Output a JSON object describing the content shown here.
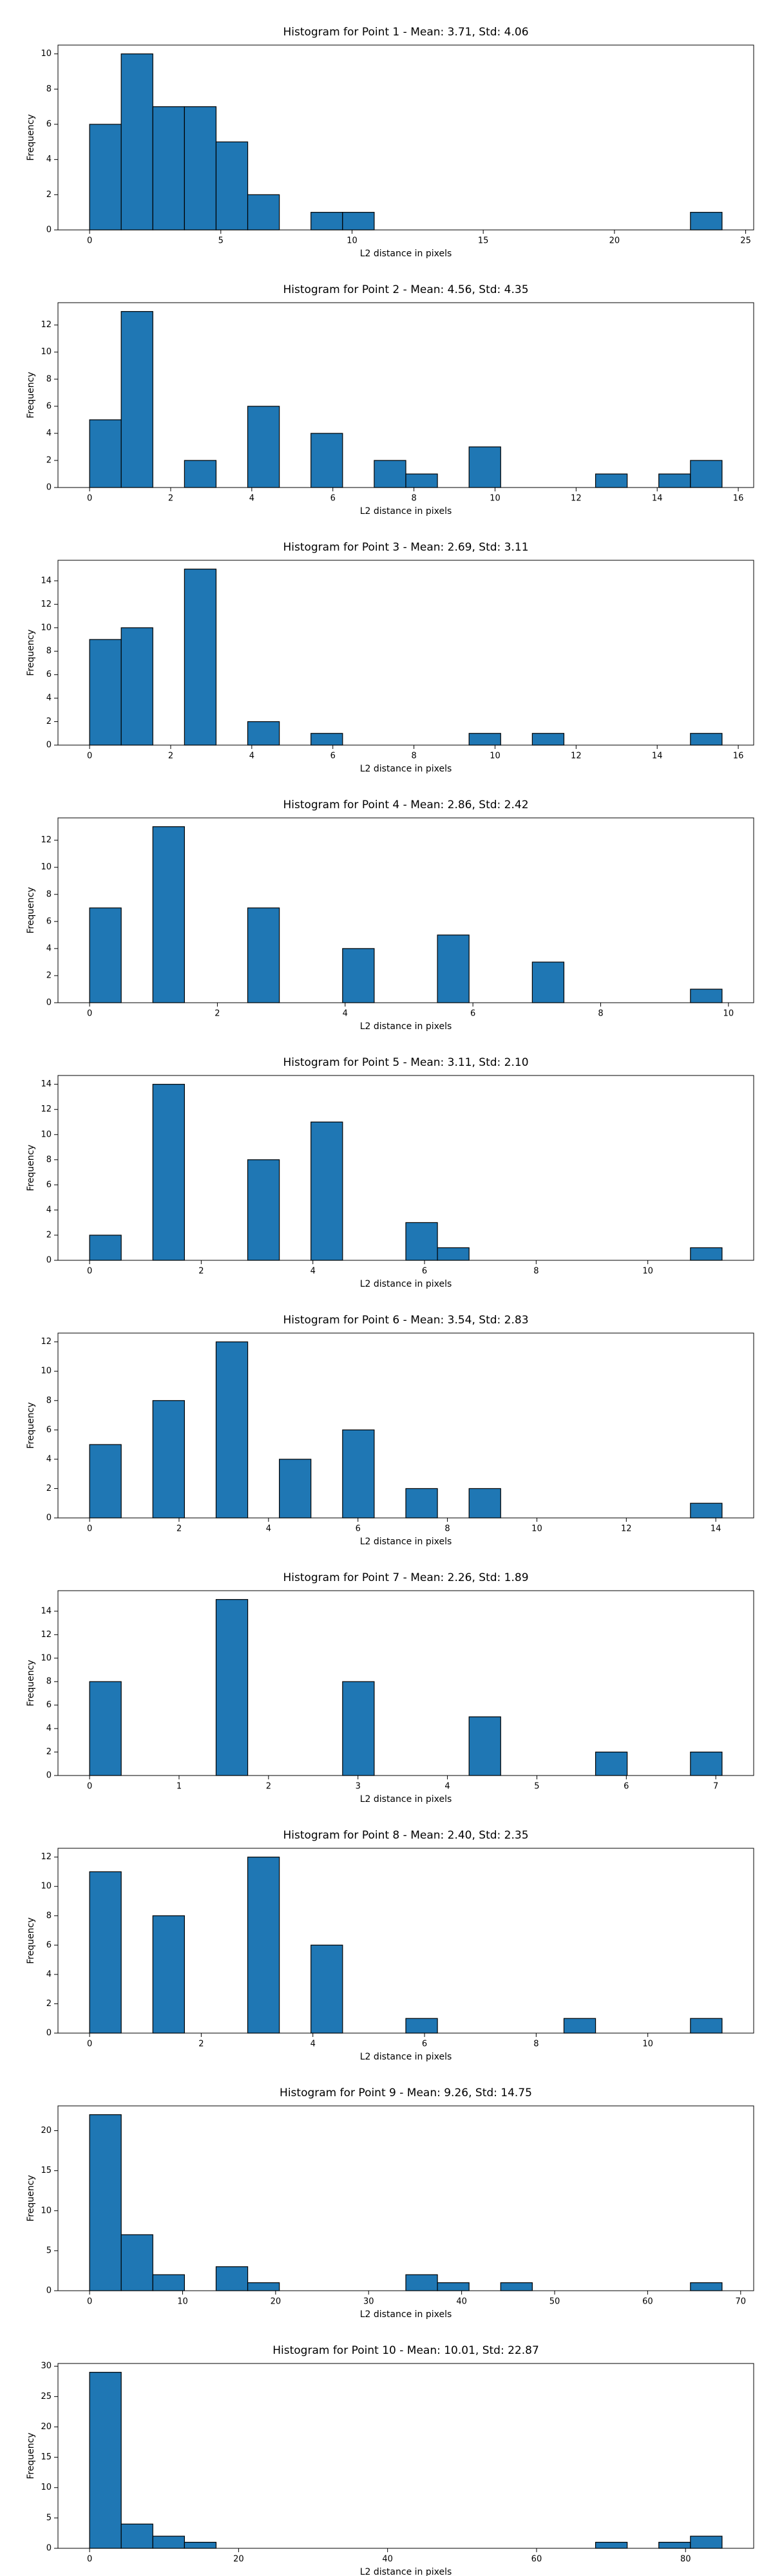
{
  "chart_data": [
    {
      "type": "histogram",
      "title": "Histogram for Point 1 - Mean: 3.71, Std: 4.06",
      "xlabel": "L2 distance in pixels",
      "ylabel": "Frequency",
      "color": "#1f77b4",
      "bins": [
        0,
        1.205,
        2.41,
        3.615,
        4.82,
        6.025,
        7.23,
        8.435,
        9.64,
        10.845,
        12.05,
        13.255,
        14.46,
        15.665,
        16.87,
        18.075,
        19.28,
        20.485,
        21.69,
        22.895,
        24.1
      ],
      "values": [
        6,
        10,
        7,
        7,
        5,
        2,
        0,
        1,
        1,
        0,
        0,
        0,
        0,
        0,
        0,
        0,
        0,
        0,
        0,
        1
      ],
      "xlim": [
        -1.205,
        25.305
      ],
      "ylim": [
        0,
        10.5
      ],
      "xticks": [
        0,
        5,
        10,
        15,
        20,
        25
      ],
      "yticks": [
        0,
        2,
        4,
        6,
        8,
        10
      ]
    },
    {
      "type": "histogram",
      "title": "Histogram for Point 2 - Mean: 4.56, Std: 4.35",
      "xlabel": "L2 distance in pixels",
      "ylabel": "Frequency",
      "color": "#1f77b4",
      "bins": [
        0,
        0.78,
        1.56,
        2.34,
        3.12,
        3.9,
        4.68,
        5.46,
        6.24,
        7.02,
        7.8,
        8.58,
        9.36,
        10.14,
        10.92,
        11.7,
        12.48,
        13.26,
        14.04,
        14.82,
        15.6
      ],
      "values": [
        5,
        13,
        0,
        2,
        0,
        6,
        0,
        4,
        0,
        2,
        1,
        0,
        3,
        0,
        0,
        0,
        1,
        0,
        1,
        2
      ],
      "xlim": [
        -0.78,
        16.38
      ],
      "ylim": [
        0,
        13.65
      ],
      "xticks": [
        0,
        2,
        4,
        6,
        8,
        10,
        12,
        14,
        16
      ],
      "yticks": [
        0,
        2,
        4,
        6,
        8,
        10,
        12
      ]
    },
    {
      "type": "histogram",
      "title": "Histogram for Point 3 - Mean: 2.69, Std: 3.11",
      "xlabel": "L2 distance in pixels",
      "ylabel": "Frequency",
      "color": "#1f77b4",
      "bins": [
        0,
        0.78,
        1.56,
        2.34,
        3.12,
        3.9,
        4.68,
        5.46,
        6.24,
        7.02,
        7.8,
        8.58,
        9.36,
        10.14,
        10.92,
        11.7,
        12.48,
        13.26,
        14.04,
        14.82,
        15.6
      ],
      "values": [
        9,
        10,
        0,
        15,
        0,
        2,
        0,
        1,
        0,
        0,
        0,
        0,
        1,
        0,
        1,
        0,
        0,
        0,
        0,
        1
      ],
      "xlim": [
        -0.78,
        16.38
      ],
      "ylim": [
        0,
        15.75
      ],
      "xticks": [
        0,
        2,
        4,
        6,
        8,
        10,
        12,
        14,
        16
      ],
      "yticks": [
        0,
        2,
        4,
        6,
        8,
        10,
        12,
        14
      ]
    },
    {
      "type": "histogram",
      "title": "Histogram for Point 4 - Mean: 2.86, Std: 2.42",
      "xlabel": "L2 distance in pixels",
      "ylabel": "Frequency",
      "color": "#1f77b4",
      "bins": [
        0,
        0.495,
        0.99,
        1.485,
        1.98,
        2.475,
        2.97,
        3.465,
        3.96,
        4.455,
        4.95,
        5.445,
        5.94,
        6.435,
        6.93,
        7.425,
        7.92,
        8.415,
        8.91,
        9.405,
        9.9
      ],
      "values": [
        7,
        0,
        13,
        0,
        0,
        7,
        0,
        0,
        4,
        0,
        0,
        5,
        0,
        0,
        3,
        0,
        0,
        0,
        0,
        1
      ],
      "xlim": [
        -0.495,
        10.395
      ],
      "ylim": [
        0,
        13.65
      ],
      "xticks": [
        0,
        2,
        4,
        6,
        8,
        10
      ],
      "yticks": [
        0,
        2,
        4,
        6,
        8,
        10,
        12
      ]
    },
    {
      "type": "histogram",
      "title": "Histogram for Point 5 - Mean: 3.11, Std: 2.10",
      "xlabel": "L2 distance in pixels",
      "ylabel": "Frequency",
      "color": "#1f77b4",
      "bins": [
        0,
        0.5665,
        1.133,
        1.6995,
        2.266,
        2.8325,
        3.399,
        3.9655,
        4.532,
        5.0985,
        5.665,
        6.2315,
        6.798,
        7.3645,
        7.931,
        8.4975,
        9.064,
        9.6305,
        10.197,
        10.7635,
        11.33
      ],
      "values": [
        2,
        0,
        14,
        0,
        0,
        8,
        0,
        11,
        0,
        0,
        3,
        1,
        0,
        0,
        0,
        0,
        0,
        0,
        0,
        1
      ],
      "xlim": [
        -0.5665,
        11.8965
      ],
      "ylim": [
        0,
        14.7
      ],
      "xticks": [
        0,
        2,
        4,
        6,
        8,
        10
      ],
      "yticks": [
        0,
        2,
        4,
        6,
        8,
        10,
        12,
        14
      ]
    },
    {
      "type": "histogram",
      "title": "Histogram for Point 6 - Mean: 3.54, Std: 2.83",
      "xlabel": "L2 distance in pixels",
      "ylabel": "Frequency",
      "color": "#1f77b4",
      "bins": [
        0,
        0.707,
        1.414,
        2.121,
        2.828,
        3.535,
        4.242,
        4.949,
        5.656,
        6.363,
        7.07,
        7.777,
        8.484,
        9.191,
        9.898,
        10.605,
        11.312,
        12.019,
        12.726,
        13.433,
        14.14
      ],
      "values": [
        5,
        0,
        8,
        0,
        12,
        0,
        4,
        0,
        6,
        0,
        2,
        0,
        2,
        0,
        0,
        0,
        0,
        0,
        0,
        1
      ],
      "xlim": [
        -0.707,
        14.847
      ],
      "ylim": [
        0,
        12.6
      ],
      "xticks": [
        0,
        2,
        4,
        6,
        8,
        10,
        12,
        14
      ],
      "yticks": [
        0,
        2,
        4,
        6,
        8,
        10,
        12
      ]
    },
    {
      "type": "histogram",
      "title": "Histogram for Point 7 - Mean: 2.26, Std: 1.89",
      "xlabel": "L2 distance in pixels",
      "ylabel": "Frequency",
      "color": "#1f77b4",
      "bins": [
        0,
        0.3535,
        0.707,
        1.0605,
        1.414,
        1.7675,
        2.121,
        2.4745,
        2.828,
        3.1815,
        3.535,
        3.8885,
        4.242,
        4.5955,
        4.949,
        5.3025,
        5.656,
        6.0095,
        6.363,
        6.7165,
        7.07
      ],
      "values": [
        8,
        0,
        0,
        0,
        15,
        0,
        0,
        0,
        8,
        0,
        0,
        0,
        5,
        0,
        0,
        0,
        2,
        0,
        0,
        2
      ],
      "xlim": [
        -0.3535,
        7.4235
      ],
      "ylim": [
        0,
        15.75
      ],
      "xticks": [
        0,
        1,
        2,
        3,
        4,
        5,
        6,
        7
      ],
      "yticks": [
        0,
        2,
        4,
        6,
        8,
        10,
        12,
        14
      ]
    },
    {
      "type": "histogram",
      "title": "Histogram for Point 8 - Mean: 2.40, Std: 2.35",
      "xlabel": "L2 distance in pixels",
      "ylabel": "Frequency",
      "color": "#1f77b4",
      "bins": [
        0,
        0.5665,
        1.133,
        1.6995,
        2.266,
        2.8325,
        3.399,
        3.9655,
        4.532,
        5.0985,
        5.665,
        6.2315,
        6.798,
        7.3645,
        7.931,
        8.4975,
        9.064,
        9.6305,
        10.197,
        10.7635,
        11.33
      ],
      "values": [
        11,
        0,
        8,
        0,
        0,
        12,
        0,
        6,
        0,
        0,
        1,
        0,
        0,
        0,
        0,
        1,
        0,
        0,
        0,
        1
      ],
      "xlim": [
        -0.5665,
        11.8965
      ],
      "ylim": [
        0,
        12.6
      ],
      "xticks": [
        0,
        2,
        4,
        6,
        8,
        10
      ],
      "yticks": [
        0,
        2,
        4,
        6,
        8,
        10,
        12
      ]
    },
    {
      "type": "histogram",
      "title": "Histogram for Point 9 - Mean: 9.26, Std: 14.75",
      "xlabel": "L2 distance in pixels",
      "ylabel": "Frequency",
      "color": "#1f77b4",
      "bins": [
        0,
        3.4,
        6.8,
        10.2,
        13.6,
        17,
        20.4,
        23.8,
        27.2,
        30.6,
        34,
        37.4,
        40.8,
        44.2,
        47.6,
        51,
        54.4,
        57.8,
        61.2,
        64.6,
        68
      ],
      "values": [
        22,
        7,
        2,
        0,
        3,
        1,
        0,
        0,
        0,
        0,
        2,
        1,
        0,
        1,
        0,
        0,
        0,
        0,
        0,
        1
      ],
      "xlim": [
        -3.4,
        71.4
      ],
      "ylim": [
        0,
        23.1
      ],
      "xticks": [
        0,
        10,
        20,
        30,
        40,
        50,
        60,
        70
      ],
      "yticks": [
        0,
        5,
        10,
        15,
        20
      ]
    },
    {
      "type": "histogram",
      "title": "Histogram for Point 10 - Mean: 10.01, Std: 22.87",
      "xlabel": "L2 distance in pixels",
      "ylabel": "Frequency",
      "color": "#1f77b4",
      "bins": [
        0,
        4.245,
        8.49,
        12.735,
        16.98,
        21.225,
        25.47,
        29.715,
        33.96,
        38.205,
        42.45,
        46.695,
        50.94,
        55.185,
        59.43,
        63.675,
        67.92,
        72.165,
        76.41,
        80.655,
        84.9
      ],
      "values": [
        29,
        4,
        2,
        1,
        0,
        0,
        0,
        0,
        0,
        0,
        0,
        0,
        0,
        0,
        0,
        0,
        1,
        0,
        1,
        2
      ],
      "xlim": [
        -4.245,
        89.145
      ],
      "ylim": [
        0,
        30.45
      ],
      "xticks": [
        0,
        20,
        40,
        60,
        80
      ],
      "yticks": [
        0,
        5,
        10,
        15,
        20,
        25,
        30
      ]
    }
  ]
}
